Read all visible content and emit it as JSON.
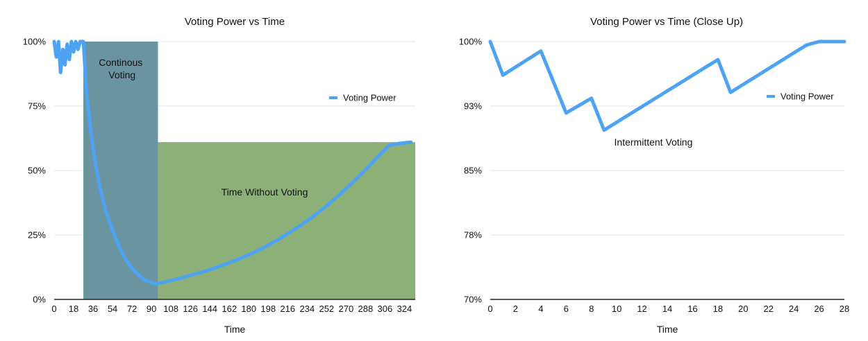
{
  "chart_data": [
    {
      "type": "line",
      "title": "Voting Power vs Time",
      "xlabel": "Time",
      "ylabel": "",
      "ylim": [
        0,
        100
      ],
      "xlim": [
        0,
        334
      ],
      "y_ticks": [
        "0%",
        "25%",
        "50%",
        "75%",
        "100%"
      ],
      "y_tick_values": [
        0,
        25,
        50,
        75,
        100
      ],
      "x_ticks": [
        "0",
        "18",
        "36",
        "54",
        "72",
        "90",
        "108",
        "126",
        "144",
        "162",
        "180",
        "198",
        "216",
        "234",
        "252",
        "270",
        "288",
        "306",
        "324"
      ],
      "grid": true,
      "legend_position": "right",
      "series": [
        {
          "name": "Voting Power",
          "color": "#4da3f2",
          "x": [
            0,
            2,
            4,
            6,
            8,
            10,
            12,
            14,
            16,
            18,
            20,
            22,
            24,
            26,
            27,
            30,
            34,
            38,
            42,
            48,
            54,
            60,
            66,
            72,
            78,
            84,
            90,
            94,
            100,
            110,
            120,
            130,
            140,
            150,
            160,
            170,
            180,
            190,
            200,
            210,
            220,
            230,
            240,
            250,
            260,
            270,
            280,
            290,
            300,
            310,
            320,
            330
          ],
          "y": [
            100,
            94,
            100,
            88,
            97,
            91,
            99,
            93,
            100,
            96,
            100,
            97,
            100,
            100,
            100,
            80,
            65,
            53,
            44,
            34,
            27,
            20.5,
            15.5,
            12,
            9.5,
            7.5,
            6.5,
            6,
            6.5,
            7.5,
            8.6,
            9.8,
            11,
            12.4,
            13.9,
            15.5,
            17.3,
            19.3,
            21.5,
            23.9,
            26.5,
            29.3,
            32.3,
            35.6,
            39.2,
            43,
            47,
            51.2,
            55.6,
            59.8,
            60.5,
            61
          ]
        }
      ],
      "regions": [
        {
          "label": "Continous Voting",
          "x0": 27,
          "x1": 96,
          "y_top": 100,
          "color": "#6a94a0"
        },
        {
          "label": "Time Without Voting",
          "x0": 96,
          "x1": 334,
          "y_top": 61,
          "color": "#8db078"
        }
      ]
    },
    {
      "type": "line",
      "title": "Voting Power vs Time (Close Up)",
      "xlabel": "Time",
      "ylabel": "",
      "ylim": [
        70,
        100
      ],
      "xlim": [
        0,
        28
      ],
      "y_ticks": [
        "70%",
        "78%",
        "85%",
        "93%",
        "100%"
      ],
      "y_tick_values": [
        70,
        77.5,
        85,
        92.5,
        100
      ],
      "x_ticks": [
        "0",
        "2",
        "4",
        "6",
        "8",
        "10",
        "12",
        "14",
        "16",
        "18",
        "20",
        "22",
        "24",
        "26",
        "28"
      ],
      "grid": true,
      "legend_position": "right",
      "annotations": [
        {
          "text": "Intermittent Voting",
          "x": 12.9,
          "y": 88.3
        }
      ],
      "series": [
        {
          "name": "Voting Power",
          "color": "#4da3f2",
          "x": [
            0,
            1,
            4,
            6,
            8,
            9,
            18,
            19,
            25,
            26,
            28
          ],
          "y": [
            100,
            96.1,
            98.9,
            91.7,
            93.4,
            89.7,
            97.9,
            94.1,
            99.6,
            100,
            100
          ]
        }
      ]
    }
  ]
}
